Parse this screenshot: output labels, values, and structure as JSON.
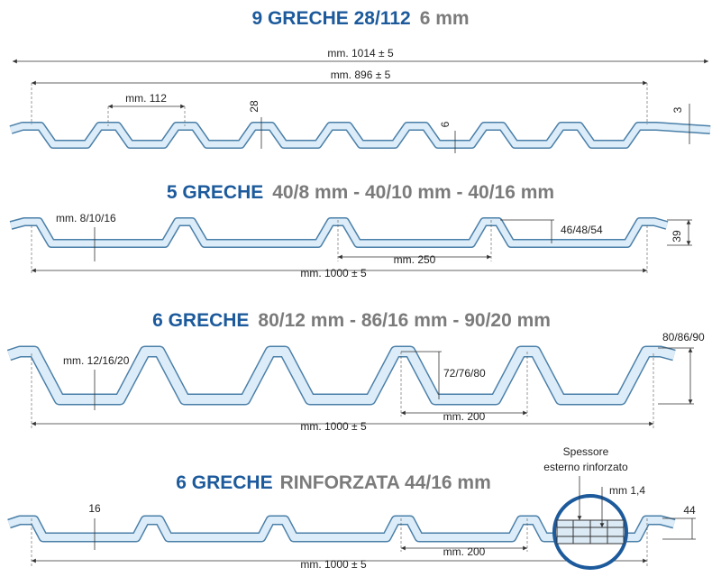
{
  "sections": [
    {
      "title_blue": "9 GRECHE 28/112",
      "title_gray": "6 mm",
      "labels": [
        "mm. 1014 ± 5",
        "mm. 896 ± 5",
        "mm. 112",
        "28",
        "6",
        "3"
      ]
    },
    {
      "title_blue": "5 GRECHE",
      "title_gray": "40/8 mm - 40/10 mm - 40/16 mm",
      "labels": [
        "mm. 8/10/16",
        "46/48/54",
        "39",
        "mm. 250",
        "mm. 1000 ± 5"
      ]
    },
    {
      "title_blue": "6 GRECHE",
      "title_gray": "80/12 mm - 86/16 mm - 90/20 mm",
      "labels": [
        "mm. 12/16/20",
        "72/76/80",
        "80/86/90",
        "mm. 200",
        "mm. 1000 ± 5"
      ]
    },
    {
      "title_blue": "6 GRECHE",
      "title_gray": "RINFORZATA  44/16 mm",
      "labels": [
        "16",
        "44",
        "mm. 200",
        "mm. 1000 ± 5",
        "Spessore",
        "esterno rinforzato",
        "mm 1,4"
      ]
    }
  ]
}
